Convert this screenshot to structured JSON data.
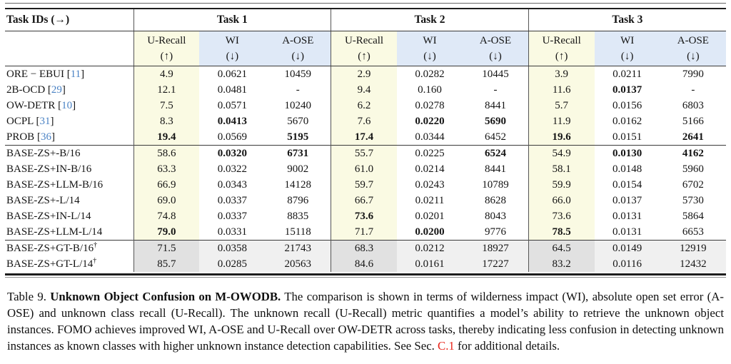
{
  "table": {
    "corner_label": "Task IDs (→)",
    "task_headers": [
      "Task 1",
      "Task 2",
      "Task 3"
    ],
    "metric_headers": [
      {
        "name": "U-Recall",
        "arrow": "(↑)",
        "band": "yellow"
      },
      {
        "name": "WI",
        "arrow": "(↓)",
        "band": "blue"
      },
      {
        "name": "A-OSE",
        "arrow": "(↓)",
        "band": "blue"
      }
    ],
    "cite_prefix": "[",
    "cite_suffix": "]",
    "groups": [
      {
        "name": "prior-methods",
        "rows": [
          {
            "label": "ORE − EBUI",
            "cite": "11",
            "values": [
              "4.9",
              "0.0621",
              "10459",
              "2.9",
              "0.0282",
              "10445",
              "3.9",
              "0.0211",
              "7990"
            ],
            "bold": []
          },
          {
            "label": "2B-OCD",
            "cite": "29",
            "values": [
              "12.1",
              "0.0481",
              "-",
              "9.4",
              "0.160",
              "-",
              "11.6",
              "0.0137",
              "-"
            ],
            "bold": [
              7
            ]
          },
          {
            "label": "OW-DETR",
            "cite": "10",
            "values": [
              "7.5",
              "0.0571",
              "10240",
              "6.2",
              "0.0278",
              "8441",
              "5.7",
              "0.0156",
              "6803"
            ],
            "bold": []
          },
          {
            "label": "OCPL",
            "cite": "31",
            "values": [
              "8.3",
              "0.0413",
              "5670",
              "7.6",
              "0.0220",
              "5690",
              "11.9",
              "0.0162",
              "5166"
            ],
            "bold": [
              1,
              4,
              5
            ]
          },
          {
            "label": "PROB",
            "cite": "36",
            "values": [
              "19.4",
              "0.0569",
              "5195",
              "17.4",
              "0.0344",
              "6452",
              "19.6",
              "0.0151",
              "2641"
            ],
            "bold": [
              0,
              2,
              3,
              6,
              8
            ]
          }
        ]
      },
      {
        "name": "base-zs-variants",
        "rows": [
          {
            "label": "BASE-ZS+-B/16",
            "values": [
              "58.6",
              "0.0320",
              "6731",
              "55.7",
              "0.0225",
              "6524",
              "54.9",
              "0.0130",
              "4162"
            ],
            "bold": [
              1,
              2,
              5,
              7,
              8
            ]
          },
          {
            "label": "BASE-ZS+IN-B/16",
            "values": [
              "63.3",
              "0.0322",
              "9002",
              "61.0",
              "0.0214",
              "8441",
              "58.1",
              "0.0148",
              "5960"
            ],
            "bold": []
          },
          {
            "label": "BASE-ZS+LLM-B/16",
            "values": [
              "66.9",
              "0.0343",
              "14128",
              "59.7",
              "0.0243",
              "10789",
              "59.9",
              "0.0154",
              "6702"
            ],
            "bold": []
          },
          {
            "label": "BASE-ZS+-L/14",
            "values": [
              "69.0",
              "0.0337",
              "8796",
              "66.7",
              "0.0211",
              "8628",
              "66.0",
              "0.0137",
              "5730"
            ],
            "bold": []
          },
          {
            "label": "BASE-ZS+IN-L/14",
            "values": [
              "74.8",
              "0.0337",
              "8835",
              "73.6",
              "0.0201",
              "8043",
              "73.6",
              "0.0131",
              "5864"
            ],
            "bold": [
              3
            ]
          },
          {
            "label": "BASE-ZS+LLM-L/14",
            "values": [
              "79.0",
              "0.0331",
              "15118",
              "71.7",
              "0.0200",
              "9776",
              "78.5",
              "0.0131",
              "6653"
            ],
            "bold": [
              0,
              4,
              6
            ]
          }
        ]
      },
      {
        "name": "base-zs-gt-variants",
        "gray": true,
        "rows": [
          {
            "label": "BASE-ZS+GT-B/16",
            "sup": "†",
            "values": [
              "71.5",
              "0.0358",
              "21743",
              "68.3",
              "0.0212",
              "18927",
              "64.5",
              "0.0149",
              "12919"
            ],
            "bold": []
          },
          {
            "label": "BASE-ZS+GT-L/14",
            "sup": "†",
            "values": [
              "85.7",
              "0.0285",
              "20563",
              "84.6",
              "0.0161",
              "17227",
              "83.2",
              "0.0116",
              "12432"
            ],
            "bold": []
          }
        ]
      }
    ]
  },
  "caption": {
    "segments": [
      {
        "text": "Table 9. ",
        "style": "normal"
      },
      {
        "text": "Unknown Object Confusion on M-OWODB.",
        "style": "bold"
      },
      {
        "text": " The comparison is shown in terms of wilderness impact (WI), absolute open set error (A-OSE) and unknown class recall (U-Recall). The unknown recall (U-Recall) metric quantifies a model’s ability to retrieve the unknown object instances. FOMO achieves improved WI, A-OSE and U-Recall over OW-DETR across tasks, thereby indicating less confusion in detecting unknown instances as known classes with higher unknown instance detection capabilities. See Sec. ",
        "style": "normal"
      },
      {
        "text": "C.1",
        "style": "red"
      },
      {
        "text": " for additional details.",
        "style": "normal"
      }
    ]
  },
  "colors": {
    "band_yellow": "#fafae3",
    "band_blue": "#dfe9f7",
    "gt_urecall_gray": "#e1e1e1",
    "gt_other_gray": "#f0f0f0",
    "citation_blue": "#4a82c4",
    "section_link_red": "#e8251b"
  }
}
